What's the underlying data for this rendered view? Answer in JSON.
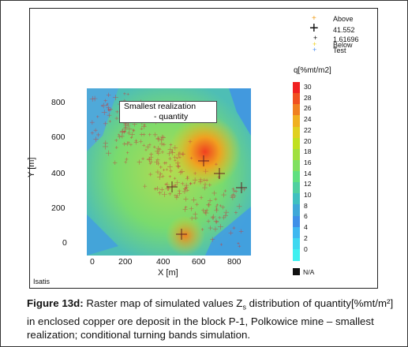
{
  "map": {
    "title_line1": "Smallest realization",
    "title_line2": "- quantity",
    "xlabel": "X [m]",
    "ylabel": "Y [m]",
    "x_ticks": [
      "0",
      "200",
      "400",
      "600",
      "800"
    ],
    "y_ticks": [
      "800",
      "600",
      "400",
      "200",
      "0"
    ],
    "software": "Isatis"
  },
  "legend": {
    "above": "Above",
    "val_high": "41.552",
    "val_low": "1.61696",
    "below": "Below",
    "test": "Test",
    "colors": {
      "above": "#f0a020",
      "below": "#f0d020",
      "test": "#5090f0",
      "cross": "#000000"
    }
  },
  "colorbar": {
    "title": "q[%mt/m2]",
    "ticks": [
      "30",
      "28",
      "26",
      "24",
      "22",
      "20",
      "18",
      "16",
      "14",
      "12",
      "10",
      "8",
      "6",
      "4",
      "2",
      "0"
    ],
    "na": "N/A",
    "colors": [
      "#f02020",
      "#f05020",
      "#f08020",
      "#f0b020",
      "#e0d020",
      "#c0e020",
      "#a0e040",
      "#80e060",
      "#60e080",
      "#50d0a0",
      "#40c0c0",
      "#40a8d8",
      "#4090e8",
      "#40b8f0",
      "#40d8f0",
      "#40f0f0"
    ]
  },
  "caption": {
    "label": "Figure 13d:",
    "text_part1": " Raster map of simulated values Z",
    "subscript": "s",
    "text_part2": " distribution of quantity[%mt/m²] in enclosed copper ore deposit in the block P-1, Polkowice mine – smallest realization; conditional turning bands simulation."
  }
}
